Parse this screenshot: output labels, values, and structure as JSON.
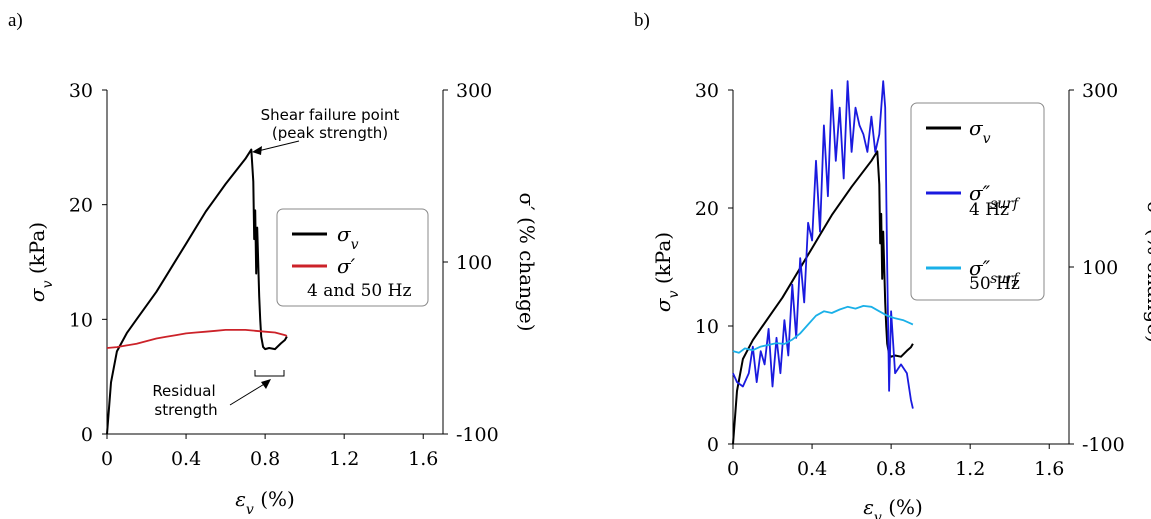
{
  "chart_data": [
    {
      "panel_label": "a)",
      "type": "line",
      "xlabel_base": "ε",
      "xlabel_sub": "v",
      "xlabel_unit": " (%)",
      "ylabel_base": "σ",
      "ylabel_sub": "v",
      "ylabel_unit": " (kPa)",
      "y2label": "σ′ (% change)",
      "xlim": [
        0,
        1.7
      ],
      "ylim": [
        0,
        30
      ],
      "y2lim": [
        -100,
        300
      ],
      "xticks": [
        "0",
        "0.4",
        "0.8",
        "1.2",
        "1.6"
      ],
      "yticks": [
        "0",
        "10",
        "20",
        "30"
      ],
      "y2ticks": [
        "-100",
        "100",
        "300"
      ],
      "grid": false,
      "legend_position": "right",
      "legend": [
        {
          "label_base": "σ",
          "label_sub": "v",
          "color": "#000000"
        },
        {
          "label_base": "σ′",
          "label_sub": "",
          "label_line2": "4 and 50 Hz",
          "color": "#cc2229"
        }
      ],
      "annotations": [
        "Shear failure point",
        "(peak strength)",
        "Residual",
        "strength"
      ],
      "series": [
        {
          "name": "σv",
          "color": "#000000",
          "axis": "left",
          "x": [
            0,
            0.02,
            0.05,
            0.1,
            0.15,
            0.2,
            0.25,
            0.3,
            0.35,
            0.4,
            0.45,
            0.5,
            0.55,
            0.6,
            0.65,
            0.7,
            0.73,
            0.74,
            0.745,
            0.75,
            0.755,
            0.76,
            0.77,
            0.775,
            0.78,
            0.79,
            0.8,
            0.82,
            0.85,
            0.88,
            0.9,
            0.91
          ],
          "y": [
            0,
            4.5,
            7.2,
            8.8,
            10.0,
            11.2,
            12.4,
            13.8,
            15.2,
            16.6,
            18.0,
            19.4,
            20.6,
            21.8,
            22.9,
            24.0,
            24.8,
            22.0,
            17.0,
            19.5,
            14.0,
            18.0,
            12.0,
            10.0,
            8.5,
            7.6,
            7.4,
            7.5,
            7.4,
            7.9,
            8.2,
            8.5
          ]
        },
        {
          "name": "σ′",
          "color": "#cc2229",
          "axis": "right",
          "x": [
            0,
            0.05,
            0.1,
            0.15,
            0.2,
            0.25,
            0.3,
            0.35,
            0.4,
            0.45,
            0.5,
            0.55,
            0.6,
            0.65,
            0.7,
            0.75,
            0.8,
            0.85,
            0.9,
            0.91
          ],
          "y": [
            0,
            1,
            3,
            5,
            8,
            11,
            13,
            15,
            17,
            18,
            19,
            20,
            21,
            21,
            21,
            20,
            19,
            18,
            15,
            14
          ]
        }
      ]
    },
    {
      "panel_label": "b)",
      "type": "line",
      "xlabel_base": "ε",
      "xlabel_sub": "v",
      "xlabel_unit": " (%)",
      "ylabel_base": "σ",
      "ylabel_sub": "v",
      "ylabel_unit": " (kPa)",
      "y2label": "σ″ (% change)",
      "xlim": [
        0,
        1.7
      ],
      "ylim": [
        0,
        30
      ],
      "y2lim": [
        -100,
        300
      ],
      "xticks": [
        "0",
        "0.4",
        "0.8",
        "1.2",
        "1.6"
      ],
      "yticks": [
        "0",
        "10",
        "20",
        "30"
      ],
      "y2ticks": [
        "-100",
        "100",
        "300"
      ],
      "grid": false,
      "legend_position": "top-right",
      "legend": [
        {
          "label_base": "σ",
          "label_sub": "v",
          "color": "#000000"
        },
        {
          "label_base": "σ″",
          "label_sub": "surf",
          "label_line2": "4 Hz",
          "color": "#1a1adf"
        },
        {
          "label_base": "σ″",
          "label_sub": "surf",
          "label_line2": "50 Hz",
          "color": "#1ab0e8"
        }
      ],
      "series": [
        {
          "name": "σv",
          "color": "#000000",
          "axis": "left",
          "x": [
            0,
            0.02,
            0.05,
            0.1,
            0.15,
            0.2,
            0.25,
            0.3,
            0.35,
            0.4,
            0.45,
            0.5,
            0.55,
            0.6,
            0.65,
            0.7,
            0.73,
            0.74,
            0.745,
            0.75,
            0.755,
            0.76,
            0.77,
            0.775,
            0.78,
            0.79,
            0.8,
            0.82,
            0.85,
            0.88,
            0.9,
            0.91
          ],
          "y": [
            0,
            4.5,
            7.2,
            8.8,
            10.0,
            11.2,
            12.4,
            13.8,
            15.2,
            16.6,
            18.0,
            19.4,
            20.6,
            21.8,
            22.9,
            24.0,
            24.8,
            22.0,
            17.0,
            19.5,
            14.0,
            18.0,
            12.0,
            10.0,
            8.5,
            7.6,
            7.4,
            7.5,
            7.4,
            7.9,
            8.2,
            8.5
          ]
        },
        {
          "name": "σ″surf 4 Hz",
          "color": "#1a1adf",
          "axis": "right",
          "x": [
            0,
            0.02,
            0.05,
            0.08,
            0.1,
            0.12,
            0.14,
            0.16,
            0.18,
            0.2,
            0.22,
            0.24,
            0.26,
            0.28,
            0.3,
            0.32,
            0.34,
            0.36,
            0.38,
            0.4,
            0.42,
            0.44,
            0.46,
            0.48,
            0.5,
            0.52,
            0.54,
            0.56,
            0.58,
            0.6,
            0.62,
            0.64,
            0.66,
            0.68,
            0.7,
            0.72,
            0.74,
            0.76,
            0.77,
            0.78,
            0.79,
            0.8,
            0.82,
            0.85,
            0.88,
            0.9,
            0.91
          ],
          "y": [
            -20,
            -30,
            -35,
            -20,
            10,
            -30,
            5,
            -10,
            30,
            -35,
            20,
            -20,
            40,
            0,
            80,
            20,
            110,
            60,
            150,
            130,
            220,
            140,
            260,
            180,
            300,
            220,
            280,
            200,
            310,
            230,
            280,
            260,
            250,
            230,
            270,
            230,
            250,
            310,
            280,
            100,
            -40,
            50,
            -20,
            -10,
            -20,
            -50,
            -60
          ]
        },
        {
          "name": "σ″surf 50 Hz",
          "color": "#1ab0e8",
          "axis": "right",
          "x": [
            0,
            0.03,
            0.06,
            0.1,
            0.14,
            0.18,
            0.22,
            0.26,
            0.3,
            0.34,
            0.38,
            0.42,
            0.46,
            0.5,
            0.54,
            0.58,
            0.62,
            0.66,
            0.7,
            0.74,
            0.78,
            0.82,
            0.86,
            0.9,
            0.91
          ],
          "y": [
            5,
            3,
            8,
            6,
            10,
            12,
            14,
            13,
            18,
            25,
            35,
            45,
            50,
            48,
            52,
            55,
            53,
            56,
            55,
            50,
            45,
            42,
            40,
            36,
            35
          ]
        }
      ]
    }
  ]
}
